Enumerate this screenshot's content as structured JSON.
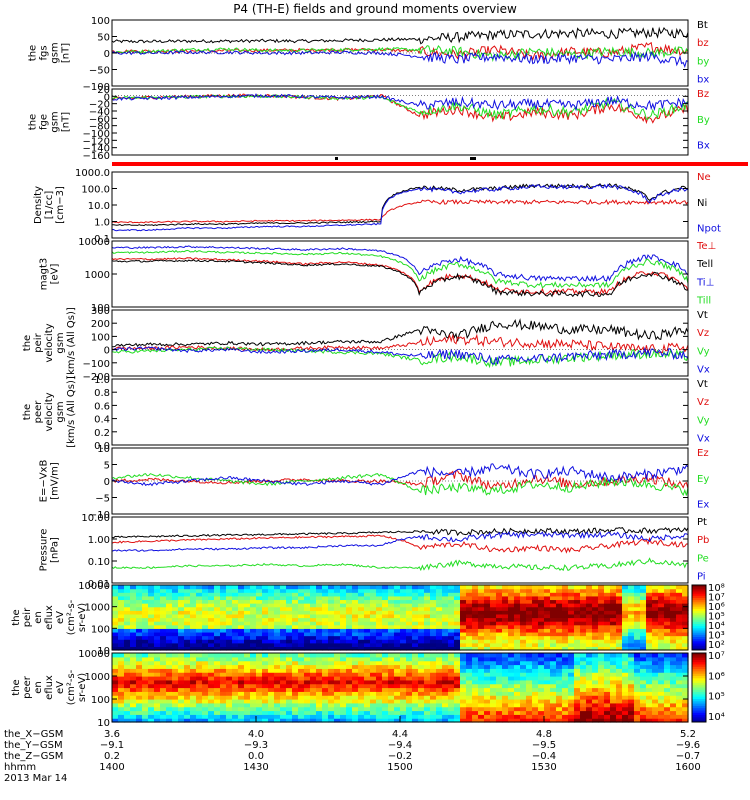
{
  "title": "P4 (TH-E) fields and ground moments overview",
  "date_label": "2013 Mar 14",
  "colors": {
    "black": "#000000",
    "red": "#e01010",
    "green": "#22dd22",
    "blue": "#1010e0"
  },
  "chart_data": [
    {
      "type": "line",
      "ylabel": [
        "the",
        "fgs",
        "gsm",
        "[nT]"
      ],
      "ylim": [
        -100,
        100
      ],
      "yticks": [
        "100",
        "50",
        "0",
        "−50",
        "−100"
      ],
      "series": [
        {
          "name": "Bt",
          "color": "#000000",
          "values": [
            35,
            35,
            36,
            36,
            37,
            36,
            38,
            40,
            42,
            48,
            55,
            58,
            60,
            58,
            62,
            60
          ]
        },
        {
          "name": "bz",
          "color": "#e01010",
          "values": [
            5,
            6,
            6,
            7,
            8,
            9,
            10,
            10,
            5,
            -5,
            10,
            -10,
            5,
            0,
            20,
            5
          ]
        },
        {
          "name": "by",
          "color": "#22dd22",
          "values": [
            3,
            5,
            10,
            12,
            8,
            8,
            10,
            12,
            10,
            5,
            -10,
            5,
            -5,
            5,
            0,
            5
          ]
        },
        {
          "name": "bx",
          "color": "#1010e0",
          "values": [
            0,
            0,
            2,
            2,
            0,
            0,
            2,
            0,
            -10,
            -20,
            -10,
            -20,
            -15,
            -20,
            -10,
            -30
          ]
        }
      ]
    },
    {
      "type": "line",
      "ylabel": [
        "the",
        "fge",
        "gsm",
        "[nT]"
      ],
      "ylim": [
        -180,
        20
      ],
      "yticks": [
        "20",
        "0",
        "−20",
        "−40",
        "−60",
        "−80",
        "−100",
        "−120",
        "−140",
        "−160"
      ],
      "series": [
        {
          "name": "Bz",
          "color": "#e01010",
          "values": [
            -10,
            -5,
            -3,
            0,
            0,
            -5,
            -10,
            0,
            -60,
            -40,
            -70,
            -50,
            -60,
            -30,
            -70,
            -40
          ]
        },
        {
          "name": "By",
          "color": "#22dd22",
          "values": [
            -8,
            -6,
            -4,
            -2,
            -2,
            -4,
            -8,
            -5,
            -50,
            -30,
            -60,
            -40,
            -50,
            -20,
            -60,
            -30
          ]
        },
        {
          "name": "Bx",
          "color": "#1010e0",
          "values": [
            -10,
            -8,
            -5,
            -2,
            0,
            -3,
            -6,
            -3,
            -30,
            -20,
            -30,
            -25,
            -30,
            -15,
            -30,
            -20
          ]
        }
      ]
    },
    {
      "type": "line",
      "ylabel": [
        "Density",
        "[1/cc]",
        "[cm−3]"
      ],
      "ylog": true,
      "ylim": [
        0.1,
        1000
      ],
      "yticks": [
        "1000.0",
        "100.0",
        "10.0",
        "1.0",
        "0.1"
      ],
      "series": [
        {
          "name": "Ne",
          "color": "#e01010",
          "values": [
            0.9,
            0.9,
            1.0,
            1.0,
            1.1,
            1.1,
            1.2,
            1.3,
            15,
            15,
            15,
            15,
            15,
            15,
            15,
            15
          ]
        },
        {
          "name": "Ni",
          "color": "#000000",
          "values": [
            0.6,
            0.6,
            0.7,
            0.7,
            0.8,
            0.8,
            0.9,
            1.0,
            120,
            80,
            100,
            150,
            140,
            160,
            20,
            120
          ]
        },
        {
          "name": "Npot",
          "color": "#1010e0",
          "values": [
            0.3,
            0.3,
            0.4,
            0.4,
            0.5,
            0.5,
            0.6,
            0.7,
            100,
            60,
            90,
            130,
            120,
            140,
            15,
            100
          ]
        }
      ]
    },
    {
      "type": "line",
      "ylabel": [
        "magt3",
        "[eV]"
      ],
      "ylog": true,
      "ylim": [
        10,
        10000
      ],
      "yticks": [
        "10000",
        "1000",
        "100"
      ],
      "series": [
        {
          "name": "Te⊥",
          "color": "#e01010",
          "values": [
            1500,
            1500,
            1600,
            1400,
            1200,
            900,
            1100,
            800,
            50,
            300,
            60,
            50,
            50,
            50,
            400,
            60
          ]
        },
        {
          "name": "Tell",
          "color": "#000000",
          "values": [
            1200,
            1200,
            1300,
            1200,
            1000,
            800,
            900,
            700,
            40,
            250,
            50,
            40,
            40,
            40,
            350,
            50
          ]
        },
        {
          "name": "Ti⊥",
          "color": "#1010e0",
          "values": [
            5000,
            5000,
            5500,
            5000,
            4500,
            4000,
            4500,
            3500,
            300,
            1500,
            300,
            200,
            200,
            200,
            2000,
            300
          ]
        },
        {
          "name": "Till",
          "color": "#22dd22",
          "values": [
            3000,
            3000,
            3500,
            3000,
            2800,
            2500,
            2800,
            2000,
            150,
            900,
            150,
            100,
            100,
            100,
            1200,
            150
          ]
        }
      ]
    },
    {
      "type": "line",
      "ylabel": [
        "the",
        "peir",
        "velocity",
        "gsm",
        "[km/s (All Qs)]"
      ],
      "ylim": [
        -200,
        300
      ],
      "yticks": [
        "300",
        "200",
        "100",
        "0",
        "−100",
        "−200"
      ],
      "series": [
        {
          "name": "Vt",
          "color": "#000000",
          "values": [
            30,
            40,
            40,
            50,
            40,
            50,
            60,
            60,
            150,
            100,
            200,
            180,
            150,
            150,
            100,
            150
          ]
        },
        {
          "name": "Vz",
          "color": "#e01010",
          "values": [
            10,
            10,
            20,
            10,
            0,
            10,
            20,
            10,
            50,
            80,
            60,
            50,
            40,
            20,
            0,
            20
          ]
        },
        {
          "name": "Vy",
          "color": "#22dd22",
          "values": [
            -20,
            -10,
            0,
            10,
            0,
            -10,
            -20,
            -30,
            -80,
            -50,
            -100,
            -80,
            -60,
            -40,
            -30,
            -50
          ]
        },
        {
          "name": "Vx",
          "color": "#1010e0",
          "values": [
            0,
            10,
            -10,
            0,
            -20,
            -10,
            0,
            -20,
            -50,
            -30,
            -80,
            -70,
            -50,
            -40,
            -20,
            -40
          ]
        }
      ]
    },
    {
      "type": "line",
      "ylabel": [
        "the",
        "peer",
        "velocity",
        "gsm",
        "[km/s (All Qs)]"
      ],
      "ylim": [
        0,
        1
      ],
      "yticks": [
        "1.0",
        "0.8",
        "0.6",
        "0.4",
        "0.2",
        "0.0"
      ],
      "series": [
        {
          "name": "Vt",
          "color": "#000000",
          "values": []
        },
        {
          "name": "Vz",
          "color": "#e01010",
          "values": []
        },
        {
          "name": "Vy",
          "color": "#22dd22",
          "values": []
        },
        {
          "name": "Vx",
          "color": "#1010e0",
          "values": []
        }
      ]
    },
    {
      "type": "line",
      "ylabel": [
        "E=−VxB",
        "[mV/m]"
      ],
      "ylim": [
        -10,
        10
      ],
      "yticks": [
        "10",
        "5",
        "0",
        "−5",
        "−10"
      ],
      "series": [
        {
          "name": "Ez",
          "color": "#e01010",
          "values": [
            0,
            0.5,
            0,
            -0.5,
            0,
            0.5,
            0,
            0,
            -1,
            2,
            -2,
            1,
            -1,
            0,
            1,
            -2
          ]
        },
        {
          "name": "Ey",
          "color": "#22dd22",
          "values": [
            1,
            2,
            1,
            0,
            -1,
            0,
            1,
            2,
            -3,
            -2,
            -3,
            -1,
            -2,
            0,
            -1,
            -3
          ]
        },
        {
          "name": "Ex",
          "color": "#1010e0",
          "values": [
            0,
            -1,
            0,
            1,
            0,
            -1,
            0,
            -1,
            3,
            2,
            4,
            2,
            3,
            1,
            2,
            4
          ]
        }
      ]
    },
    {
      "type": "line",
      "ylabel": [
        "Pressure",
        "[nPa]"
      ],
      "ylog": true,
      "ylim": [
        0.01,
        10
      ],
      "yticks": [
        "10.00",
        "1.00",
        "0.10",
        "0.01"
      ],
      "series": [
        {
          "name": "Pt",
          "color": "#000000",
          "values": [
            1.2,
            1.3,
            1.4,
            1.5,
            1.6,
            1.7,
            1.8,
            2.0,
            2.2,
            2.0,
            2.2,
            2.4,
            2.2,
            2.5,
            2.4,
            2.6
          ]
        },
        {
          "name": "Pb",
          "color": "#e01010",
          "values": [
            0.7,
            0.8,
            0.9,
            1.0,
            1.1,
            1.2,
            1.3,
            1.4,
            0.4,
            0.6,
            0.3,
            0.4,
            0.3,
            0.5,
            0.8,
            0.5
          ]
        },
        {
          "name": "Pe",
          "color": "#22dd22",
          "values": [
            0.05,
            0.05,
            0.06,
            0.06,
            0.07,
            0.06,
            0.07,
            0.05,
            0.05,
            0.08,
            0.06,
            0.05,
            0.05,
            0.06,
            0.1,
            0.06
          ]
        },
        {
          "name": "Pi",
          "color": "#1010e0",
          "values": [
            0.3,
            0.3,
            0.35,
            0.35,
            0.4,
            0.4,
            0.5,
            0.5,
            1.3,
            0.9,
            1.5,
            1.6,
            1.5,
            1.6,
            1.0,
            1.5
          ]
        }
      ]
    },
    {
      "type": "heatmap",
      "ylabel": [
        "the",
        "peir",
        "en",
        "eflux",
        "eV",
        "(cm²-s-",
        "sr-eV)"
      ],
      "ylog": true,
      "ylim": [
        10,
        20000
      ],
      "yticks": [
        "10000",
        "1000",
        "100",
        "10"
      ],
      "colorbar_ticks": [
        "10⁸",
        "10⁷",
        "10⁶",
        "10⁵",
        "10⁴",
        "10³",
        "10²"
      ]
    },
    {
      "type": "heatmap",
      "ylabel": [
        "the",
        "peer",
        "en",
        "eflux",
        "eV",
        "(cm²-s-",
        "sr-eV)"
      ],
      "ylog": true,
      "ylim": [
        10,
        20000
      ],
      "yticks": [
        "10000",
        "1000",
        "100",
        "10"
      ],
      "colorbar_ticks": [
        "10⁷",
        "10⁶",
        "10⁵",
        "10⁴"
      ]
    }
  ],
  "x_axis": {
    "row_labels": [
      "the_X−GSM",
      "the_Y−GSM",
      "the_Z−GSM",
      "hhmm"
    ],
    "columns": [
      {
        "vals": [
          "3.6",
          "−9.1",
          "0.2",
          "1400"
        ]
      },
      {
        "vals": [
          "4.0",
          "−9.3",
          "0.0",
          "1430"
        ]
      },
      {
        "vals": [
          "4.4",
          "−9.4",
          "−0.2",
          "1500"
        ]
      },
      {
        "vals": [
          "4.8",
          "−9.5",
          "−0.4",
          "1530"
        ]
      },
      {
        "vals": [
          "5.2",
          "−9.6",
          "−0.7",
          "1600"
        ]
      }
    ]
  }
}
